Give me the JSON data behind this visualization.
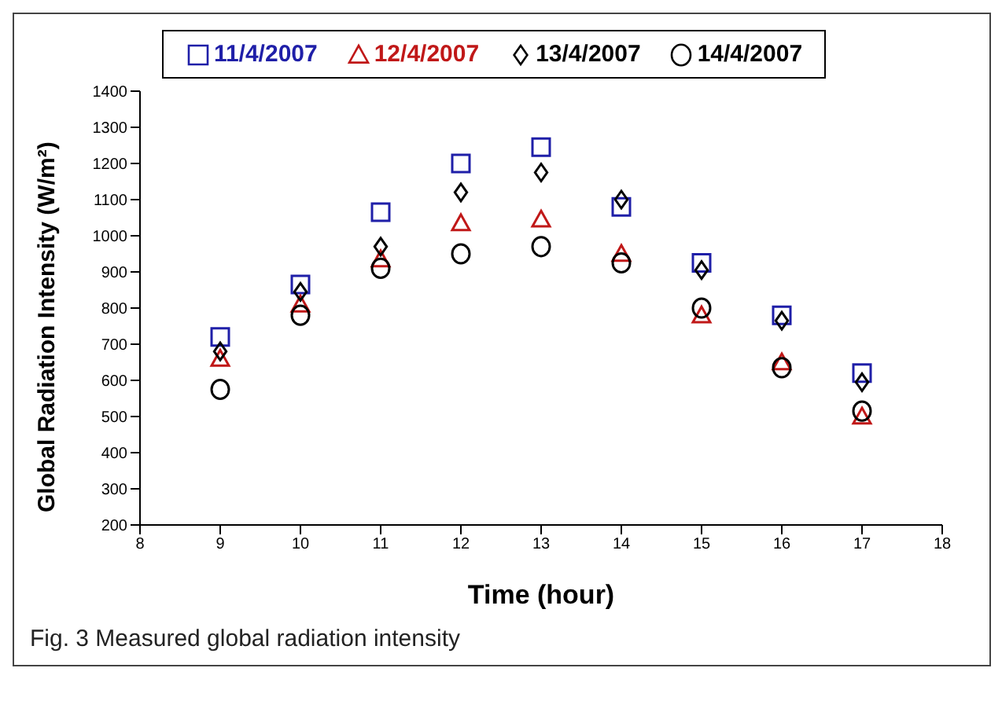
{
  "chart_data": {
    "type": "scatter",
    "xlabel": "Time (hour)",
    "ylabel": "Global Radiation Intensity (W/m²)",
    "x": [
      9,
      10,
      11,
      12,
      13,
      14,
      15,
      16,
      17
    ],
    "xlim": [
      8,
      18
    ],
    "xticks": [
      8,
      9,
      10,
      11,
      12,
      13,
      14,
      15,
      16,
      17,
      18
    ],
    "ylim": [
      200,
      1400
    ],
    "yticks": [
      200,
      300,
      400,
      500,
      600,
      700,
      800,
      900,
      1000,
      1100,
      1200,
      1300,
      1400
    ],
    "grid": false,
    "legend": "top",
    "series": [
      {
        "name": "11/4/2007",
        "color": "#1f1fa8",
        "marker": "square",
        "values": [
          720,
          865,
          1065,
          1200,
          1245,
          1080,
          925,
          780,
          620
        ]
      },
      {
        "name": "12/4/2007",
        "color": "#c01818",
        "marker": "triangle",
        "values": [
          660,
          810,
          935,
          1035,
          1045,
          950,
          780,
          650,
          500
        ]
      },
      {
        "name": "13/4/2007",
        "color": "#000000",
        "marker": "diamond",
        "values": [
          680,
          845,
          970,
          1120,
          1175,
          1100,
          905,
          765,
          595
        ]
      },
      {
        "name": "14/4/2007",
        "color": "#000000",
        "marker": "circle",
        "values": [
          575,
          780,
          910,
          950,
          970,
          925,
          800,
          635,
          515
        ]
      }
    ],
    "annotations": [
      "Fig. 3 Measured global radiation intensity"
    ]
  }
}
